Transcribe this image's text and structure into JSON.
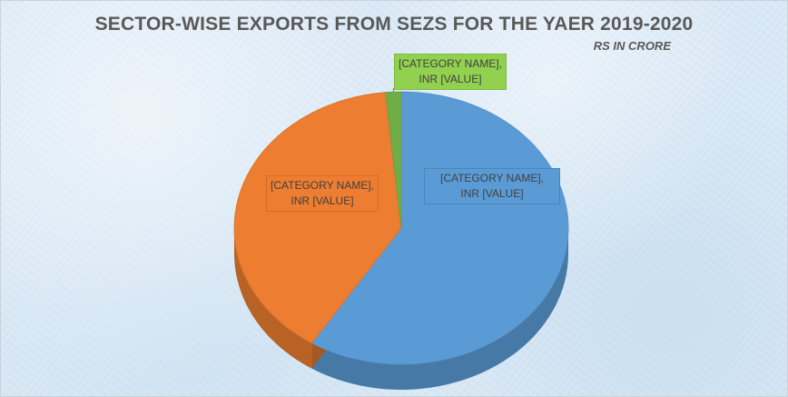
{
  "chart_data": {
    "type": "pie",
    "title": "SECTOR-WISE EXPORTS FROM SEZS FOR THE YAER 2019-2020",
    "subtitle": "RS IN CRORE",
    "values": [
      59,
      39.5,
      1.5
    ],
    "slice_colors": [
      "#5b9bd5",
      "#ed7d31",
      "#70ad47"
    ],
    "data_labels": [
      {
        "line1": "[CATEGORY NAME],",
        "line2": "INR [VALUE]"
      },
      {
        "line1": "[CATEGORY NAME],",
        "line2": "INR [VALUE]"
      },
      {
        "line1": "[CATEGORY NAME],",
        "line2": "INR [VALUE]"
      }
    ],
    "style": "3d"
  }
}
